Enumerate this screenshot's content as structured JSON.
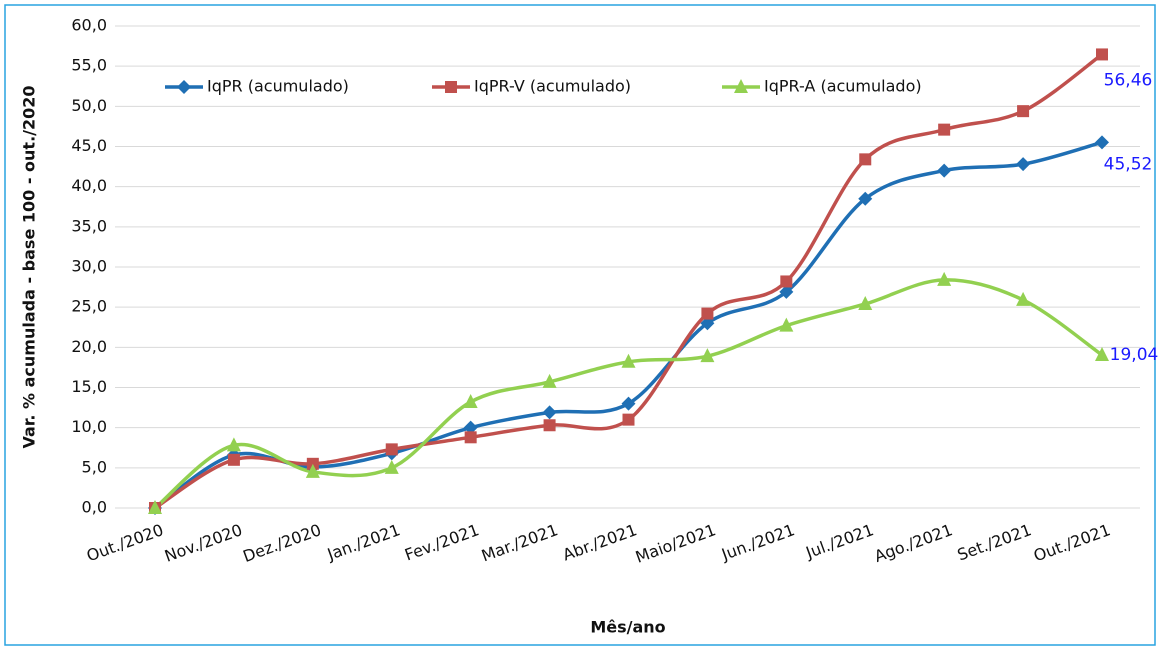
{
  "chart_data": {
    "type": "line",
    "y_label": "Var. % acumulada - base 100 - out./2020",
    "x_label": "Mês/ano",
    "categories": [
      "Out./2020",
      "Nov./2020",
      "Dez./2020",
      "Jan./2021",
      "Fev./2021",
      "Mar./2021",
      "Abr./2021",
      "Maio/2021",
      "Jun./2021",
      "Jul./2021",
      "Ago./2021",
      "Set./2021",
      "Out./2021"
    ],
    "series": [
      {
        "name": "IqPR (acumulado)",
        "color": "#1f6fb4",
        "marker": "diamond",
        "values": [
          0,
          6.6,
          5.1,
          6.8,
          10.0,
          11.9,
          13.0,
          23.0,
          26.9,
          38.5,
          42.0,
          42.8,
          45.52
        ],
        "value_labels": [
          null,
          null,
          null,
          null,
          null,
          null,
          null,
          null,
          null,
          null,
          null,
          null,
          "45,52"
        ]
      },
      {
        "name": "IqPR-V  (acumulado)",
        "color": "#c0504d",
        "marker": "square",
        "values": [
          0,
          6.0,
          5.5,
          7.3,
          8.8,
          10.3,
          11.0,
          24.2,
          28.2,
          43.4,
          47.1,
          49.4,
          56.46
        ],
        "value_labels": [
          null,
          null,
          null,
          null,
          null,
          null,
          null,
          null,
          null,
          null,
          null,
          null,
          "56,46"
        ]
      },
      {
        "name": "IqPR-A  (acumulado)",
        "color": "#92d050",
        "marker": "triangle",
        "values": [
          0,
          7.8,
          4.5,
          5.0,
          13.2,
          15.7,
          18.2,
          18.9,
          22.7,
          25.4,
          28.4,
          25.9,
          19.04
        ],
        "value_labels": [
          null,
          null,
          null,
          null,
          null,
          null,
          null,
          null,
          null,
          null,
          null,
          null,
          "19,04"
        ]
      }
    ],
    "ylim": [
      0,
      60
    ],
    "yticks": [
      {
        "value": 0,
        "label": "0,0"
      },
      {
        "value": 5,
        "label": "5,0"
      },
      {
        "value": 10,
        "label": "10,0"
      },
      {
        "value": 15,
        "label": "15,0"
      },
      {
        "value": 20,
        "label": "20,0"
      },
      {
        "value": 25,
        "label": "25,0"
      },
      {
        "value": 30,
        "label": "30,0"
      },
      {
        "value": 35,
        "label": "35,0"
      },
      {
        "value": 40,
        "label": "40,0"
      },
      {
        "value": 45,
        "label": "45,0"
      },
      {
        "value": 50,
        "label": "50,0"
      },
      {
        "value": 55,
        "label": "55,0"
      },
      {
        "value": 60,
        "label": "60,0"
      }
    ],
    "grid": true,
    "label_color": "#1a1aff"
  }
}
